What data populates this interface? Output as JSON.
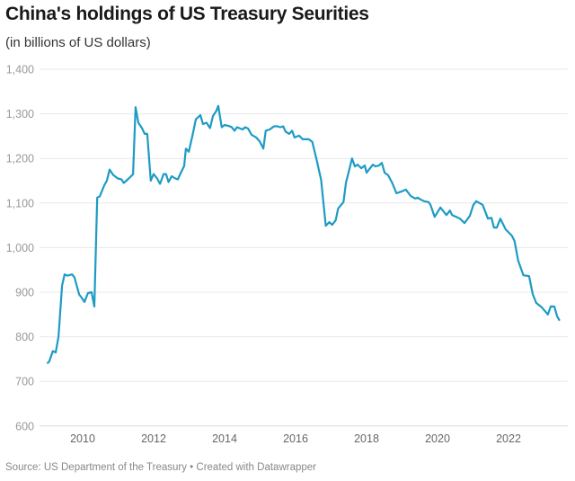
{
  "chart_data": {
    "type": "line",
    "title": "China's holdings of US Treasury Seurities",
    "subtitle": "(in billions of US dollars)",
    "xlabel": "",
    "ylabel": "",
    "xlim": [
      2009,
      2023.5
    ],
    "ylim": [
      600,
      1400
    ],
    "x_ticks": [
      2010,
      2012,
      2014,
      2016,
      2018,
      2020,
      2022
    ],
    "y_ticks": [
      600,
      700,
      800,
      900,
      1000,
      1100,
      1200,
      1300,
      1400
    ],
    "y_tick_labels": [
      "600",
      "700",
      "800",
      "900",
      "1,000",
      "1,100",
      "1,200",
      "1,300",
      "1,400"
    ],
    "grid": "horizontal",
    "line_color": "#1d9bc4",
    "series": [
      {
        "x": [
          2009.0,
          2009.06,
          2009.16,
          2009.24,
          2009.32,
          2009.42,
          2009.49,
          2009.57,
          2009.7,
          2009.77,
          2009.9,
          2009.97,
          2010.05,
          2010.15,
          2010.25,
          2010.33,
          2010.41,
          2010.48,
          2010.61,
          2010.68,
          2010.76,
          2010.86,
          2010.99,
          2011.09,
          2011.16,
          2011.27,
          2011.39,
          2011.42,
          2011.49,
          2011.57,
          2011.67,
          2011.75,
          2011.82,
          2011.92,
          2012.0,
          2012.1,
          2012.18,
          2012.28,
          2012.35,
          2012.42,
          2012.51,
          2012.61,
          2012.68,
          2012.78,
          2012.86,
          2012.91,
          2012.99,
          2013.09,
          2013.19,
          2013.32,
          2013.39,
          2013.49,
          2013.59,
          2013.67,
          2013.77,
          2013.82,
          2013.92,
          2014.0,
          2014.15,
          2014.2,
          2014.28,
          2014.35,
          2014.51,
          2014.58,
          2014.66,
          2014.76,
          2014.89,
          2014.99,
          2015.09,
          2015.16,
          2015.27,
          2015.39,
          2015.49,
          2015.57,
          2015.65,
          2015.72,
          2015.82,
          2015.9,
          2015.97,
          2016.1,
          2016.2,
          2016.37,
          2016.47,
          2016.59,
          2016.72,
          2016.85,
          2016.95,
          2017.03,
          2017.13,
          2017.2,
          2017.35,
          2017.42,
          2017.49,
          2017.59,
          2017.67,
          2017.75,
          2017.85,
          2017.95,
          2018.0,
          2018.18,
          2018.25,
          2018.35,
          2018.43,
          2018.51,
          2018.61,
          2018.73,
          2018.84,
          2018.99,
          2019.11,
          2019.24,
          2019.37,
          2019.44,
          2019.52,
          2019.62,
          2019.75,
          2019.8,
          2019.92,
          2020.08,
          2020.25,
          2020.35,
          2020.41,
          2020.53,
          2020.63,
          2020.76,
          2020.91,
          2021.01,
          2021.09,
          2021.27,
          2021.42,
          2021.52,
          2021.59,
          2021.67,
          2021.77,
          2021.92,
          2022.09,
          2022.17,
          2022.27,
          2022.42,
          2022.58,
          2022.68,
          2022.78,
          2022.94,
          2023.11,
          2023.19,
          2023.29,
          2023.37,
          2023.44
        ],
        "values": [
          740,
          745,
          768,
          765,
          800,
          915,
          940,
          937,
          940,
          933,
          895,
          888,
          878,
          898,
          900,
          868,
          1112,
          1115,
          1140,
          1150,
          1175,
          1163,
          1155,
          1153,
          1145,
          1153,
          1162,
          1165,
          1315,
          1280,
          1268,
          1255,
          1255,
          1150,
          1165,
          1155,
          1143,
          1165,
          1165,
          1147,
          1160,
          1155,
          1153,
          1170,
          1183,
          1222,
          1215,
          1250,
          1288,
          1297,
          1277,
          1280,
          1268,
          1295,
          1307,
          1318,
          1270,
          1275,
          1272,
          1270,
          1262,
          1270,
          1265,
          1270,
          1267,
          1253,
          1247,
          1238,
          1222,
          1262,
          1265,
          1272,
          1272,
          1270,
          1272,
          1260,
          1255,
          1262,
          1247,
          1251,
          1243,
          1243,
          1237,
          1198,
          1152,
          1049,
          1057,
          1051,
          1061,
          1088,
          1102,
          1146,
          1168,
          1200,
          1182,
          1186,
          1178,
          1184,
          1168,
          1186,
          1182,
          1184,
          1190,
          1168,
          1162,
          1144,
          1122,
          1126,
          1130,
          1116,
          1110,
          1112,
          1108,
          1104,
          1102,
          1096,
          1069,
          1090,
          1073,
          1083,
          1073,
          1069,
          1065,
          1055,
          1071,
          1096,
          1104,
          1096,
          1065,
          1067,
          1045,
          1045,
          1065,
          1041,
          1027,
          1015,
          971,
          938,
          936,
          896,
          876,
          866,
          850,
          868,
          868,
          846,
          836
        ]
      }
    ]
  },
  "footer": "Source: US Department of the Treasury • Created with Datawrapper"
}
